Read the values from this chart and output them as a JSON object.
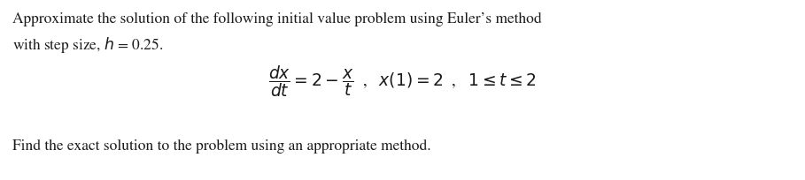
{
  "bg_color": "#ffffff",
  "text_color": "#1a1a1a",
  "line1": "Approximate the solution of the following initial value problem using Euler’s method",
  "line2": "with step size, $h$ = 0.25.",
  "equation": "$\\dfrac{dx}{dt} = 2 - \\dfrac{x}{t}$  ,   $x(1) = 2$  ,   $1 \\leq t \\leq 2$",
  "line3": "Find the exact solution to the problem using an appropriate method.",
  "font_size_text": 12.5,
  "font_size_eq": 13.5,
  "fig_width": 9.09,
  "fig_height": 2.05,
  "dpi": 100
}
